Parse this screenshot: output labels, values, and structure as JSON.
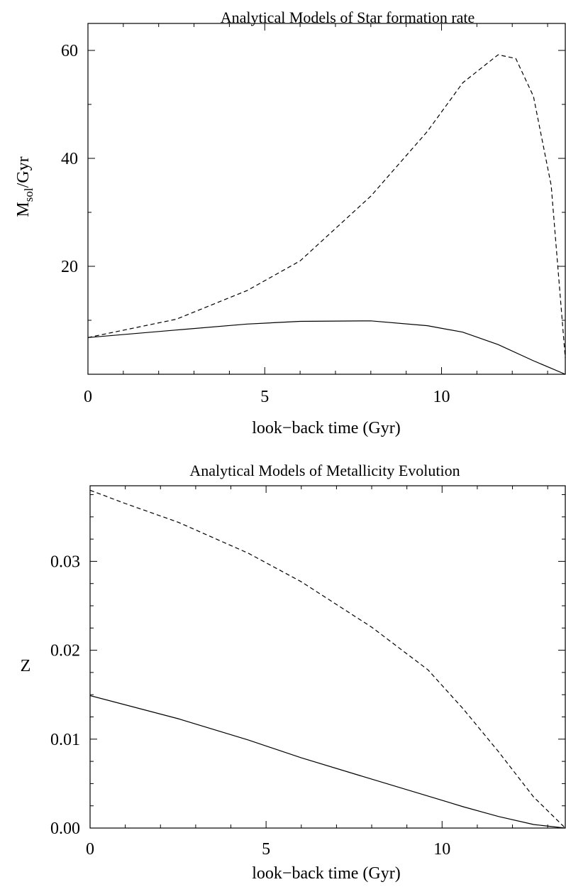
{
  "chart_data": [
    {
      "type": "line",
      "title": "Analytical Models of Star formation rate",
      "xlabel": "look−back time (Gyr)",
      "ylabel_main": "M",
      "ylabel_sub": "sol",
      "ylabel_rest": "/Gyr",
      "xlim": [
        0,
        13.5
      ],
      "ylim": [
        0,
        65
      ],
      "xticks": [
        0,
        5,
        10
      ],
      "xtick_labels": [
        "0",
        "5",
        "10"
      ],
      "yticks": [
        20,
        40,
        60
      ],
      "ytick_labels": [
        "20",
        "40",
        "60"
      ],
      "x_minor_step": 1,
      "y_minor_step": 10,
      "grid": false,
      "series": [
        {
          "style": "solid",
          "x": [
            0,
            2.5,
            4.5,
            6,
            8,
            9.6,
            10.6,
            11.6,
            12.6,
            13.5
          ],
          "y": [
            6.8,
            8.2,
            9.3,
            9.8,
            9.9,
            9.0,
            7.8,
            5.5,
            2.5,
            0.0
          ]
        },
        {
          "style": "dashed",
          "x": [
            0,
            2.5,
            4.5,
            6,
            8,
            9.6,
            10.6,
            11.6,
            12.1,
            12.6,
            13.1,
            13.5
          ],
          "y": [
            6.8,
            10.2,
            15.5,
            21,
            33,
            45,
            54,
            59.2,
            58.5,
            51.5,
            35,
            3
          ]
        }
      ]
    },
    {
      "type": "line",
      "title": "Analytical Models of Metallicity Evolution",
      "xlabel": "look−back time (Gyr)",
      "ylabel_main": "Z",
      "ylabel_sub": "",
      "ylabel_rest": "",
      "xlim": [
        0,
        13.5
      ],
      "ylim": [
        0,
        0.0385
      ],
      "xticks": [
        0,
        5,
        10
      ],
      "xtick_labels": [
        "0",
        "5",
        "10"
      ],
      "yticks": [
        0,
        0.01,
        0.02,
        0.03
      ],
      "ytick_labels": [
        "0.00",
        "0.01",
        "0.02",
        "0.03"
      ],
      "x_minor_step": 1,
      "y_minor_step": 0.0025,
      "grid": false,
      "series": [
        {
          "style": "solid",
          "x": [
            0,
            2.5,
            4.5,
            6,
            8,
            9.6,
            10.6,
            11.6,
            12.6,
            13.5
          ],
          "y": [
            0.0149,
            0.0123,
            0.0099,
            0.0079,
            0.0055,
            0.0036,
            0.0024,
            0.0013,
            0.0004,
            0.0
          ]
        },
        {
          "style": "dashed",
          "x": [
            0,
            1,
            2.5,
            4.5,
            6,
            8,
            9.6,
            10.6,
            11.6,
            12.6,
            13.5
          ],
          "y": [
            0.038,
            0.0365,
            0.0344,
            0.0309,
            0.0277,
            0.0226,
            0.0178,
            0.0134,
            0.0086,
            0.0035,
            0.0
          ]
        }
      ]
    }
  ]
}
